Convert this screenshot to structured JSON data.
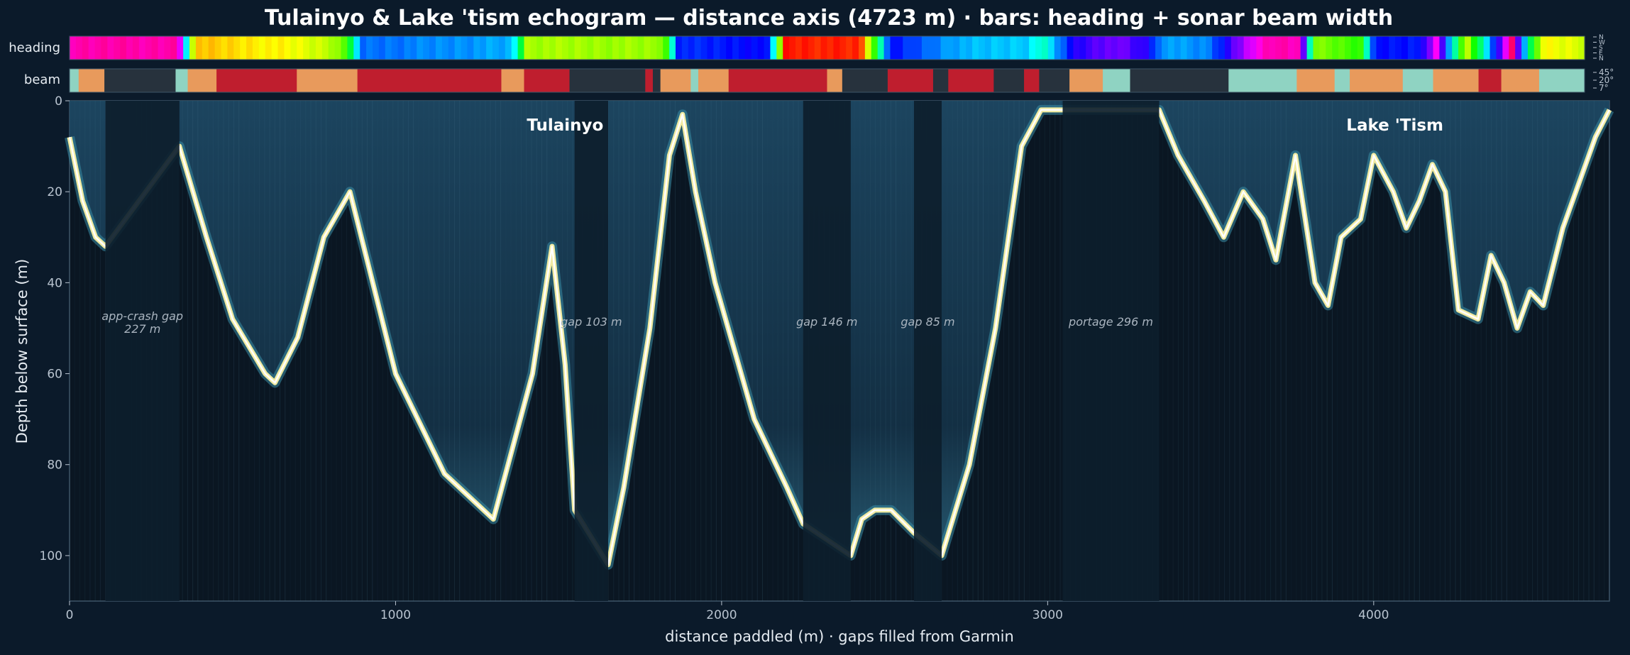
{
  "chart_data": {
    "type": "heatmap",
    "title": "Tulainyo & Lake 'tism echogram — distance axis (4723 m) · bars: heading + sonar beam width",
    "xlabel": "distance paddled (m)  ·  gaps filled from Garmin",
    "ylabel": "Depth below surface (m)",
    "xlim": [
      0,
      4723
    ],
    "ylim": [
      110,
      0
    ],
    "x_ticks": [
      "0",
      "1000",
      "2000",
      "3000",
      "4000"
    ],
    "y_ticks": [
      "0",
      "20",
      "40",
      "60",
      "80",
      "100"
    ],
    "x_tick_values": [
      0,
      1000,
      2000,
      3000,
      4000
    ],
    "y_tick_values": [
      0,
      20,
      40,
      60,
      80,
      100
    ],
    "bars": [
      {
        "label": "heading",
        "legend_ticks": [
          "N",
          "W",
          "S",
          "E",
          "N"
        ]
      },
      {
        "label": "beam",
        "legend_ticks": [
          "45°",
          "20°",
          "7°"
        ]
      }
    ],
    "lake_labels": [
      {
        "text": "Tulainyo",
        "x": 1520
      },
      {
        "text": "Lake 'Tism",
        "x": 4065
      }
    ],
    "gaps": [
      {
        "text": "app-crash gap\n227 m",
        "x_start": 110,
        "x_end": 337
      },
      {
        "text": "gap 103 m",
        "x_start": 1549,
        "x_end": 1652
      },
      {
        "text": "gap 146 m",
        "x_start": 2250,
        "x_end": 2396
      },
      {
        "text": "gap 85 m",
        "x_start": 2590,
        "x_end": 2675
      },
      {
        "text": "portage 296 m",
        "x_start": 3046,
        "x_end": 3342
      }
    ],
    "bottom_profile": {
      "x": [
        0,
        40,
        80,
        110,
        337,
        420,
        500,
        600,
        630,
        700,
        780,
        860,
        1000,
        1150,
        1300,
        1420,
        1480,
        1520,
        1549,
        1652,
        1700,
        1780,
        1840,
        1880,
        1920,
        1980,
        2100,
        2200,
        2250,
        2396,
        2430,
        2470,
        2520,
        2590,
        2675,
        2760,
        2840,
        2920,
        2980,
        3046,
        3342,
        3400,
        3480,
        3540,
        3600,
        3660,
        3700,
        3760,
        3820,
        3860,
        3900,
        3960,
        4000,
        4060,
        4100,
        4140,
        4180,
        4220,
        4260,
        4320,
        4360,
        4400,
        4440,
        4480,
        4520,
        4580,
        4620,
        4680,
        4723
      ],
      "depth": [
        8,
        22,
        30,
        32,
        10,
        30,
        48,
        60,
        62,
        52,
        30,
        20,
        60,
        82,
        92,
        60,
        32,
        58,
        90,
        102,
        85,
        50,
        12,
        3,
        20,
        40,
        70,
        85,
        93,
        100,
        92,
        90,
        90,
        95,
        100,
        80,
        50,
        10,
        2,
        2,
        2,
        12,
        22,
        30,
        20,
        26,
        35,
        12,
        40,
        45,
        30,
        26,
        12,
        20,
        28,
        22,
        14,
        20,
        46,
        48,
        34,
        40,
        50,
        42,
        45,
        28,
        20,
        8,
        2
      ]
    }
  }
}
